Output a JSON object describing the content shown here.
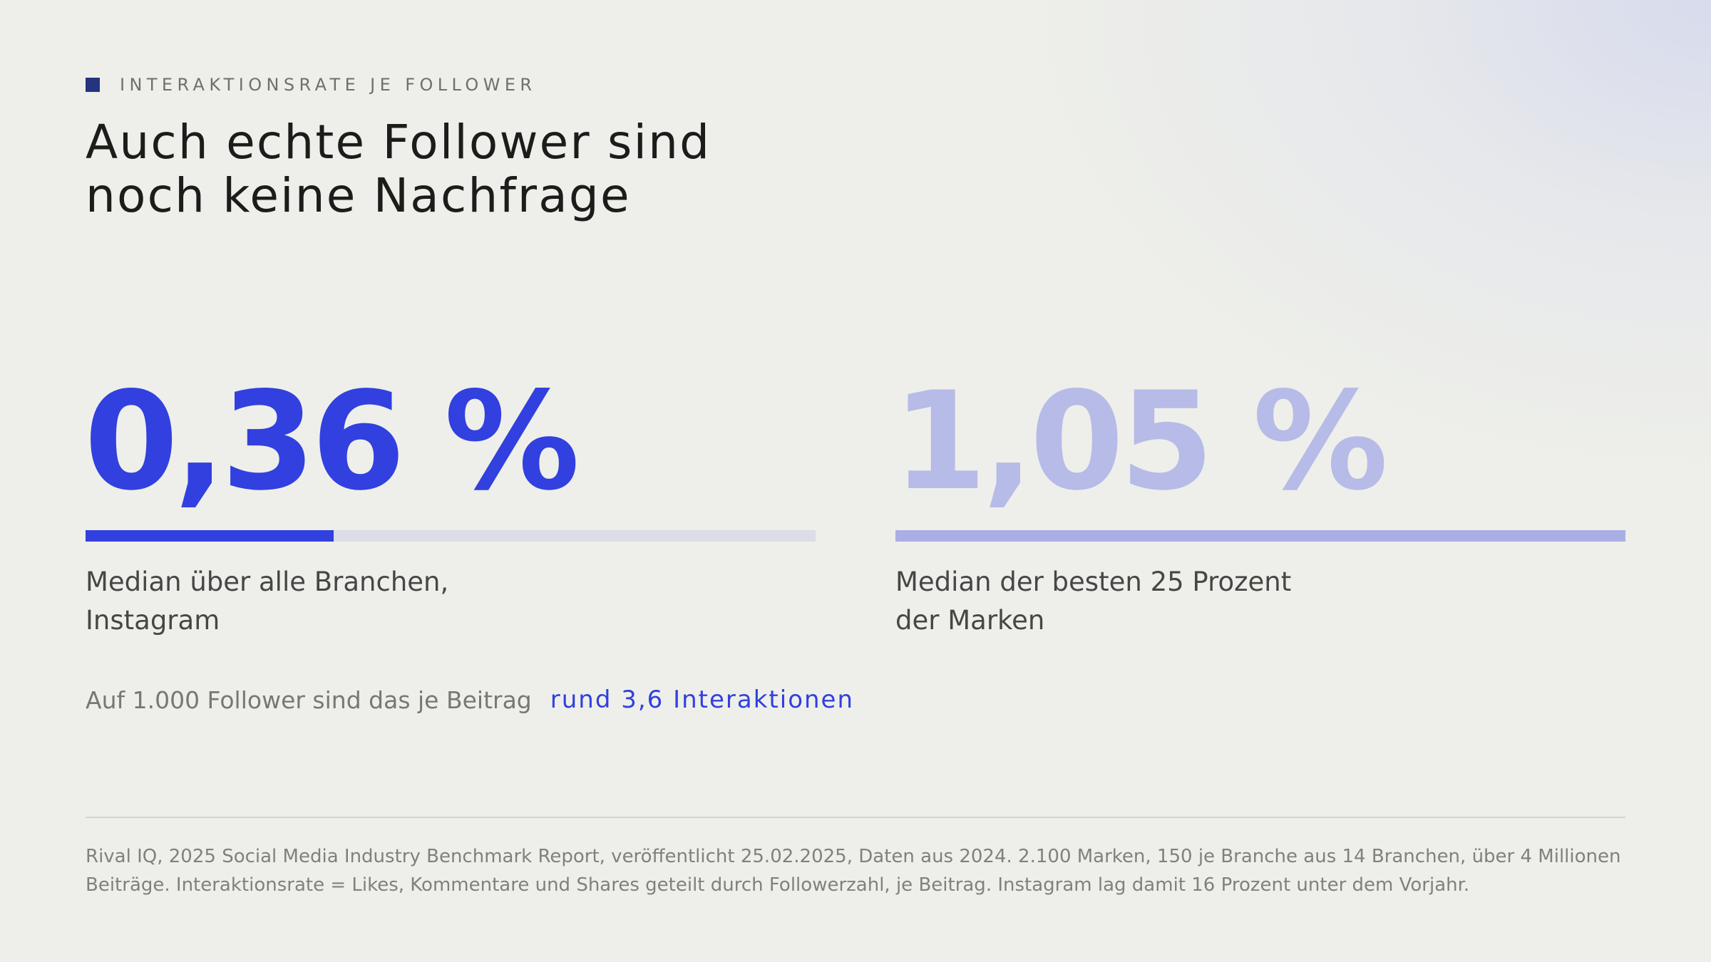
{
  "eyebrow": {
    "label": "INTERAKTIONSRATE JE FOLLOWER",
    "marker_color": "#26337f"
  },
  "title": {
    "line1": "Auch echte Follower sind",
    "line2": "noch keine Nachfrage"
  },
  "stats": {
    "primary": {
      "value": "0,36 %",
      "numeric_percent": 0.36,
      "bar_fill_fraction": 0.34,
      "label_line1": "Median über alle Branchen,",
      "label_line2": "Instagram",
      "color": "#3140df"
    },
    "secondary": {
      "value": "1,05 %",
      "numeric_percent": 1.05,
      "bar_fill_fraction": 1.0,
      "label_line1": "Median der besten 25 Prozent",
      "label_line2": "der Marken",
      "color": "#b7bbe7"
    }
  },
  "note": {
    "text": "Auf 1.000 Follower sind das je Beitrag",
    "highlight": "rund 3,6 Interaktionen"
  },
  "source": {
    "line1": "Rival IQ, 2025 Social Media Industry Benchmark Report, veröffentlicht 25.02.2025, Daten aus 2024. 2.100 Marken, 150 je Branche aus 14 Branchen, über 4 Millionen",
    "line2": "Beiträge. Interaktionsrate = Likes, Kommentare und Shares geteilt durch Followerzahl, je Beitrag. Instagram lag damit 16 Prozent unter dem Vorjahr."
  }
}
